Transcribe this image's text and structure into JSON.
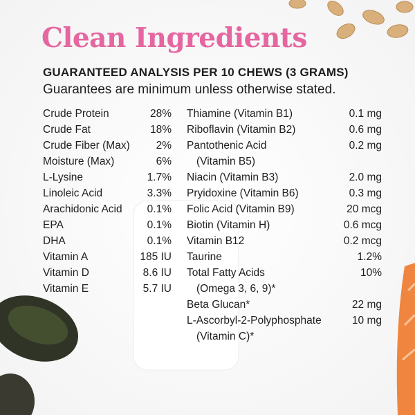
{
  "title": "Clean Ingredients",
  "heading": "GUARANTEED ANALYSIS PER 10 CHEWS (3 GRAMS)",
  "subtitle": "Guarantees are minimum unless otherwise stated.",
  "left": [
    {
      "name": [
        "Crude Protein"
      ],
      "value": "28%"
    },
    {
      "name": [
        "Crude Fat"
      ],
      "value": "18%"
    },
    {
      "name": [
        "Crude Fiber (Max)"
      ],
      "value": "2%"
    },
    {
      "name": [
        "Moisture (Max)"
      ],
      "value": "6%"
    },
    {
      "name": [
        "L-Lysine"
      ],
      "value": "1.7%"
    },
    {
      "name": [
        "Linoleic Acid"
      ],
      "value": "3.3%"
    },
    {
      "name": [
        "Arachidonic Acid"
      ],
      "value": "0.1%"
    },
    {
      "name": [
        "EPA"
      ],
      "value": "0.1%"
    },
    {
      "name": [
        "DHA"
      ],
      "value": "0.1%"
    },
    {
      "name": [
        "Vitamin A"
      ],
      "value": "185 IU"
    },
    {
      "name": [
        "Vitamin D"
      ],
      "value": "8.6 IU"
    },
    {
      "name": [
        "Vitamin E"
      ],
      "value": "5.7 IU"
    }
  ],
  "right": [
    {
      "name": [
        "Thiamine (Vitamin B1)"
      ],
      "value": "0.1 mg"
    },
    {
      "name": [
        "Riboflavin (Vitamin B2)"
      ],
      "value": "0.6 mg"
    },
    {
      "name": [
        "Pantothenic Acid",
        "(Vitamin B5)"
      ],
      "value": "0.2 mg"
    },
    {
      "name": [
        "Niacin (Vitamin B3)"
      ],
      "value": "2.0 mg"
    },
    {
      "name": [
        "Pryidoxine (Vitamin B6)"
      ],
      "value": "0.3 mg"
    },
    {
      "name": [
        "Folic Acid (Vitamin B9)"
      ],
      "value": "20 mcg"
    },
    {
      "name": [
        "Biotin (Vitamin H)"
      ],
      "value": "0.6 mcg"
    },
    {
      "name": [
        "Vitamin B12"
      ],
      "value": "0.2 mcg"
    },
    {
      "name": [
        "Taurine"
      ],
      "value": "1.2%"
    },
    {
      "name": [
        "Total Fatty Acids",
        "(Omega 3, 6, 9)*"
      ],
      "value": "10%"
    },
    {
      "name": [
        "Beta Glucan*"
      ],
      "value": "22 mg"
    },
    {
      "name": [
        "L-Ascorbyl-2-Polyphosphate",
        "(Vitamin C)*"
      ],
      "value": "10 mg"
    }
  ]
}
